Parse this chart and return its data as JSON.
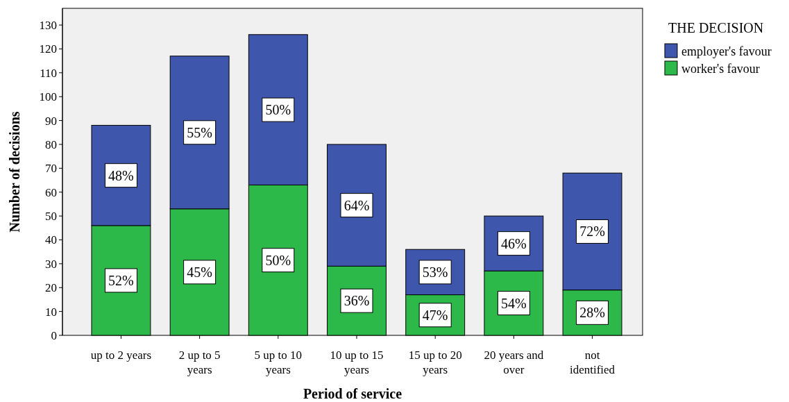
{
  "chart_data": {
    "type": "bar",
    "stacked": true,
    "xlabel": "Period of service",
    "ylabel": "Number of decisions",
    "legend_title": "THE DECISION",
    "legend": "right",
    "grid": false,
    "categories": [
      "up to 2 years",
      "2 up to 5 years",
      "5 up to 10 years",
      "10 up to 15 years",
      "15 up to 20 years",
      "20 years and over",
      "not identified"
    ],
    "ylim": [
      0,
      137
    ],
    "yticks": [
      0,
      10,
      20,
      30,
      40,
      50,
      60,
      70,
      80,
      90,
      100,
      110,
      120,
      130
    ],
    "series": [
      {
        "name": "worker's favour",
        "color": "#2db84a",
        "values": [
          46,
          53,
          63,
          29,
          17,
          27,
          19
        ]
      },
      {
        "name": "employer's favour",
        "color": "#3f56ad",
        "values": [
          42,
          64,
          63,
          51,
          19,
          23,
          49
        ]
      }
    ],
    "annotations": [
      "52%",
      "45%",
      "50%",
      "36%",
      "47%",
      "54%",
      "28%",
      "48%",
      "55%",
      "50%",
      "64%",
      "53%",
      "46%",
      "72%"
    ]
  }
}
